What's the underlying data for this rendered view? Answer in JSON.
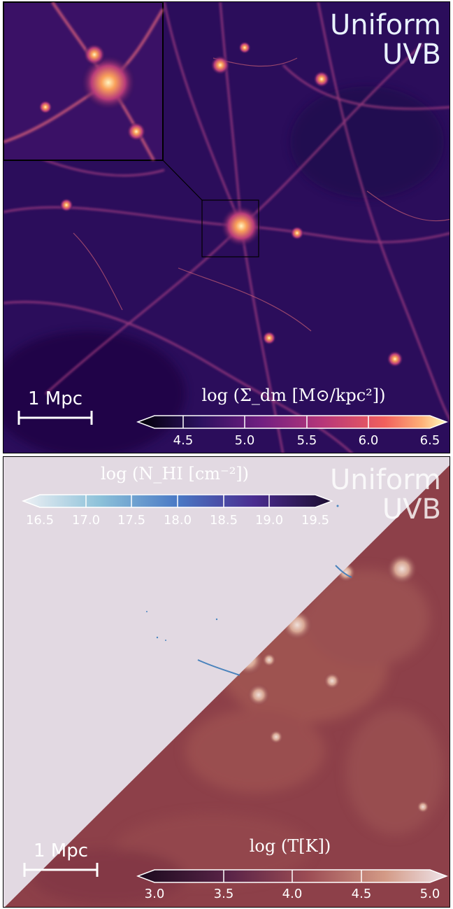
{
  "top": {
    "label_line1": "Uniform",
    "label_line2": "UVB",
    "scalebar_label": "1 Mpc",
    "colorbar_title": "log (Σ_dm [M⊙/kpc²])",
    "colorbar_ticks": [
      "4.5",
      "5.0",
      "5.5",
      "6.0",
      "6.5"
    ]
  },
  "bottom": {
    "label_line1": "Uniform",
    "label_line2": "UVB",
    "scalebar_label": "1 Mpc",
    "colorbar_nhi_title": "log (N_HI [cm⁻²])",
    "colorbar_nhi_ticks": [
      "16.5",
      "17.0",
      "17.5",
      "18.0",
      "18.5",
      "19.0",
      "19.5"
    ],
    "colorbar_t_title": "log (T[K])",
    "colorbar_t_ticks": [
      "3.0",
      "3.5",
      "4.0",
      "4.5",
      "5.0"
    ]
  }
}
